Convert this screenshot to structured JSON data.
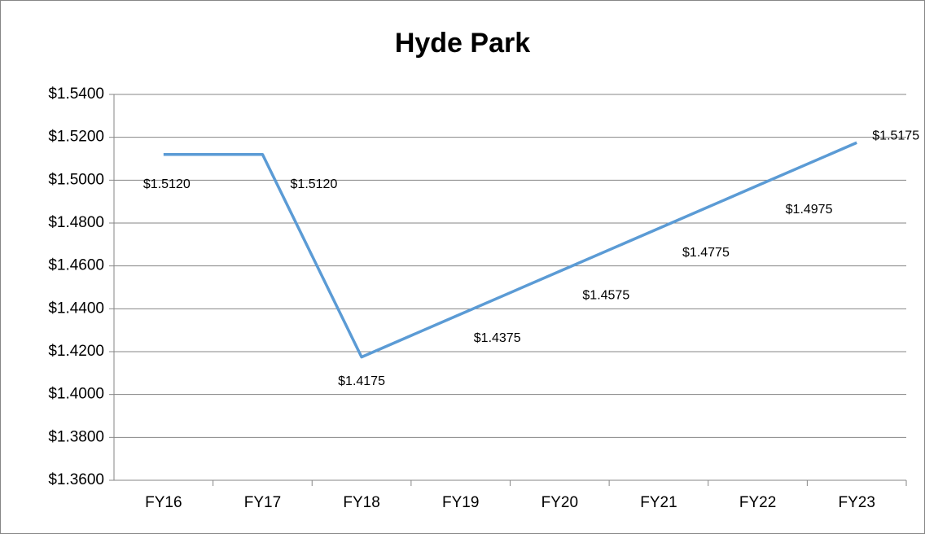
{
  "chart_data": {
    "type": "line",
    "title": "Hyde Park",
    "categories": [
      "FY16",
      "FY17",
      "FY18",
      "FY19",
      "FY20",
      "FY21",
      "FY22",
      "FY23"
    ],
    "series": [
      {
        "name": "Hyde Park",
        "color": "#5b9bd5",
        "values": [
          1.512,
          1.512,
          1.4175,
          1.4375,
          1.4575,
          1.4775,
          1.4975,
          1.5175
        ],
        "value_labels": [
          "$1.5120",
          "$1.5120",
          "$1.4175",
          "$1.4375",
          "$1.4575",
          "$1.4775",
          "$1.4975",
          "$1.5175"
        ]
      }
    ],
    "ylim": [
      1.36,
      1.54
    ],
    "yticks": [
      {
        "value": 1.36,
        "label": "$1.3600"
      },
      {
        "value": 1.38,
        "label": "$1.3800"
      },
      {
        "value": 1.4,
        "label": "$1.4000"
      },
      {
        "value": 1.42,
        "label": "$1.4200"
      },
      {
        "value": 1.44,
        "label": "$1.4400"
      },
      {
        "value": 1.46,
        "label": "$1.4600"
      },
      {
        "value": 1.48,
        "label": "$1.4800"
      },
      {
        "value": 1.5,
        "label": "$1.5000"
      },
      {
        "value": 1.52,
        "label": "$1.5200"
      },
      {
        "value": 1.54,
        "label": "$1.5400"
      }
    ],
    "grid": true
  }
}
